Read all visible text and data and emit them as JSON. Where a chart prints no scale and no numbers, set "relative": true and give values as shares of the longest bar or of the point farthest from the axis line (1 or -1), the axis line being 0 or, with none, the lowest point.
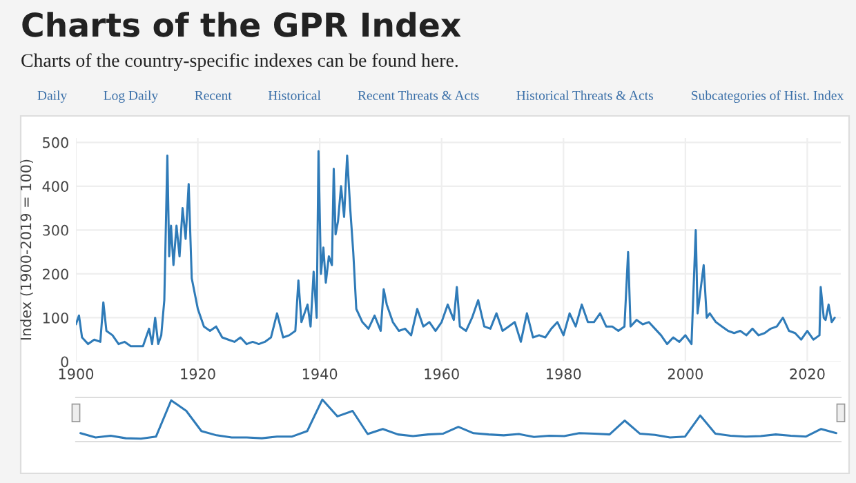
{
  "chart_data": [
    {
      "type": "line",
      "title": "Charts of the GPR Index",
      "subtitle": "Charts of the country-specific indexes can be found here.",
      "annotations": [
        "Daily",
        "Log Daily",
        "Recent",
        "Historical",
        "Recent Threats & Acts",
        "Historical Threats & Acts",
        "Subcategories of Hist. Index"
      ],
      "ylabel": "Index (1900-2019 = 100)",
      "x": [
        1900,
        1900.5,
        1901,
        1902,
        1903,
        1904,
        1904.5,
        1905,
        1906,
        1907,
        1908,
        1909,
        1910,
        1911,
        1912,
        1912.5,
        1913,
        1913.5,
        1914,
        1914.5,
        1915,
        1915.3,
        1915.6,
        1916,
        1916.5,
        1917,
        1917.5,
        1918,
        1918.5,
        1919,
        1920,
        1921,
        1922,
        1923,
        1924,
        1925,
        1926,
        1927,
        1928,
        1929,
        1930,
        1931,
        1932,
        1933,
        1934,
        1935,
        1936,
        1936.5,
        1937,
        1938,
        1938.5,
        1939,
        1939.5,
        1939.8,
        1940.2,
        1940.6,
        1941,
        1941.5,
        1942,
        1942.3,
        1942.6,
        1943,
        1943.5,
        1944,
        1944.5,
        1945,
        1945.5,
        1946,
        1947,
        1948,
        1949,
        1950,
        1950.5,
        1951,
        1952,
        1953,
        1954,
        1955,
        1956,
        1957,
        1958,
        1959,
        1960,
        1961,
        1962,
        1962.5,
        1963,
        1964,
        1965,
        1966,
        1967,
        1968,
        1969,
        1970,
        1971,
        1972,
        1973,
        1974,
        1975,
        1976,
        1977,
        1978,
        1979,
        1980,
        1981,
        1982,
        1983,
        1984,
        1985,
        1986,
        1987,
        1988,
        1989,
        1990,
        1990.6,
        1991,
        1992,
        1993,
        1994,
        1995,
        1996,
        1997,
        1998,
        1999,
        2000,
        2001,
        2001.7,
        2002,
        2003,
        2003.5,
        2004,
        2005,
        2006,
        2007,
        2008,
        2009,
        2010,
        2011,
        2012,
        2013,
        2014,
        2015,
        2016,
        2017,
        2018,
        2019,
        2020,
        2021,
        2022,
        2022.2,
        2022.7,
        2023,
        2023.5,
        2024,
        2024.5
      ],
      "series": [
        {
          "color": "#2f7bb8",
          "values": [
            85,
            105,
            55,
            40,
            50,
            45,
            135,
            70,
            60,
            40,
            45,
            35,
            35,
            35,
            75,
            40,
            100,
            40,
            60,
            140,
            470,
            240,
            310,
            220,
            310,
            240,
            350,
            280,
            405,
            190,
            120,
            80,
            70,
            80,
            55,
            50,
            45,
            55,
            40,
            45,
            40,
            45,
            55,
            110,
            55,
            60,
            70,
            185,
            90,
            130,
            80,
            205,
            100,
            480,
            200,
            260,
            180,
            240,
            220,
            440,
            290,
            320,
            400,
            330,
            470,
            350,
            250,
            120,
            90,
            75,
            105,
            70,
            165,
            130,
            90,
            70,
            75,
            60,
            120,
            80,
            90,
            70,
            90,
            130,
            95,
            170,
            80,
            70,
            100,
            140,
            80,
            75,
            110,
            70,
            80,
            90,
            45,
            110,
            55,
            60,
            55,
            75,
            90,
            60,
            110,
            80,
            130,
            90,
            90,
            110,
            80,
            80,
            70,
            80,
            250,
            80,
            95,
            85,
            90,
            75,
            60,
            40,
            55,
            45,
            60,
            40,
            300,
            110,
            220,
            100,
            110,
            90,
            80,
            70,
            65,
            70,
            60,
            75,
            60,
            65,
            75,
            80,
            100,
            70,
            65,
            50,
            70,
            50,
            60,
            170,
            100,
            95,
            130,
            90,
            100
          ]
        }
      ],
      "xlim": [
        1900,
        2025.5
      ],
      "ylim": [
        0,
        510
      ],
      "xticks": [
        1900,
        1920,
        1940,
        1960,
        1980,
        2000,
        2020
      ],
      "yticks": [
        0,
        100,
        200,
        300,
        400,
        500
      ],
      "grid": true,
      "legend": false,
      "marker": "none"
    },
    {
      "type": "line",
      "relative": true,
      "categories": [
        null,
        null,
        null,
        null,
        null,
        null,
        null,
        null,
        null,
        null,
        null,
        null,
        null,
        null,
        null,
        null,
        null,
        null,
        null,
        null,
        null,
        null,
        null,
        null,
        null,
        null,
        null,
        null,
        null,
        null,
        null,
        null,
        null,
        null,
        null,
        null,
        null,
        null,
        null,
        null,
        null,
        null,
        null,
        null,
        null,
        null,
        null,
        null,
        null,
        null,
        null
      ],
      "series": [
        {
          "color": "#2f7bb8",
          "values": [
            0.2,
            0.1,
            0.14,
            0.08,
            0.07,
            0.12,
            0.98,
            0.73,
            0.25,
            0.15,
            0.1,
            0.1,
            0.08,
            0.12,
            0.12,
            0.25,
            1.0,
            0.6,
            0.73,
            0.18,
            0.3,
            0.17,
            0.13,
            0.17,
            0.19,
            0.35,
            0.2,
            0.17,
            0.15,
            0.18,
            0.11,
            0.14,
            0.13,
            0.2,
            0.19,
            0.17,
            0.5,
            0.19,
            0.16,
            0.1,
            0.12,
            0.62,
            0.19,
            0.14,
            0.12,
            0.13,
            0.17,
            0.14,
            0.12,
            0.3,
            0.2
          ]
        }
      ],
      "grid": false,
      "legend": false,
      "marker": "none"
    }
  ]
}
